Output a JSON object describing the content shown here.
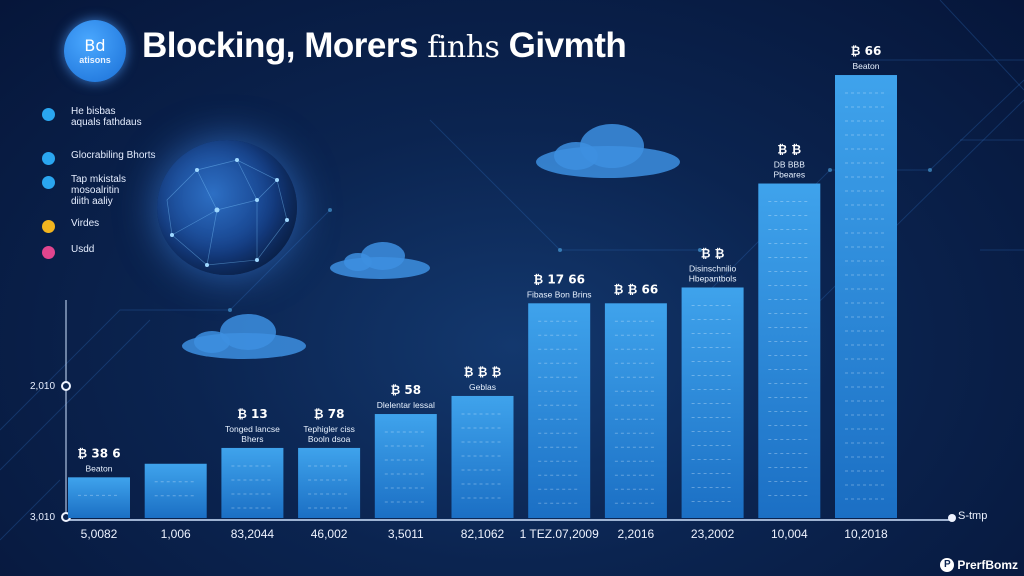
{
  "header": {
    "title_bold": "Blocking, Morers",
    "title_thin": "finhs",
    "title_end": "Givmth",
    "logo_mark": "Bd",
    "logo_sub": "atisons"
  },
  "legend": [
    {
      "label": "He bisbas\naquals fathdaus",
      "color": "#2aa6f0"
    },
    {
      "label": "Glocrabiling Bhorts",
      "color": "#2aa6f0"
    },
    {
      "label": "Tap mkistals\nmosoalritin\ndiith aaliy",
      "color": "#2aa6f0"
    },
    {
      "label": "Virdes",
      "color": "#f2b51f"
    },
    {
      "label": "Usdd",
      "color": "#e0458e"
    }
  ],
  "y_axis": {
    "upper_label": "2,010",
    "lower_label": "3,010"
  },
  "right_axis_label": "S-tmp",
  "brand": "PrerfBomz",
  "chart_data": {
    "type": "bar",
    "categories": [
      "5,0082",
      "1,006",
      "83,2044",
      "46,002",
      "3,5011",
      "82,1062",
      "1 TEZ.07,2009",
      "2,2016",
      "23,2002",
      "10,004",
      "10,2018"
    ],
    "values": [
      9,
      12,
      15.5,
      15.5,
      23,
      27,
      47.5,
      47.5,
      51,
      74,
      98
    ],
    "ylim": [
      0,
      100
    ],
    "bar_labels": [
      {
        "value": "₿ 38 6",
        "caption": "Beaton"
      },
      {
        "value": "",
        "caption": ""
      },
      {
        "value": "₿ 13",
        "caption": "Tonged lancse\nBhers"
      },
      {
        "value": "₿ 78",
        "caption": "Tephigler ciss\nBooln dsoa"
      },
      {
        "value": "₿ 58",
        "caption": "Dlelentar lessal"
      },
      {
        "value": "₿ ₿ ₿",
        "caption": "Geblas"
      },
      {
        "value": "₿ 17 66",
        "caption": "Fibase Bon Brins"
      },
      {
        "value": "₿ ₿ 66",
        "caption": ""
      },
      {
        "value": "₿ ₿",
        "caption": "Disinschnilio\nHbepantbols"
      },
      {
        "value": "₿ ₿",
        "caption": "DB BBB\nPbeares"
      },
      {
        "value": "₿ 66",
        "caption": "Beaton"
      }
    ]
  },
  "colors": {
    "bar_top": "#3fa3ec",
    "bar_bottom": "#1b6fc4",
    "accent": "#5cc2ff"
  }
}
